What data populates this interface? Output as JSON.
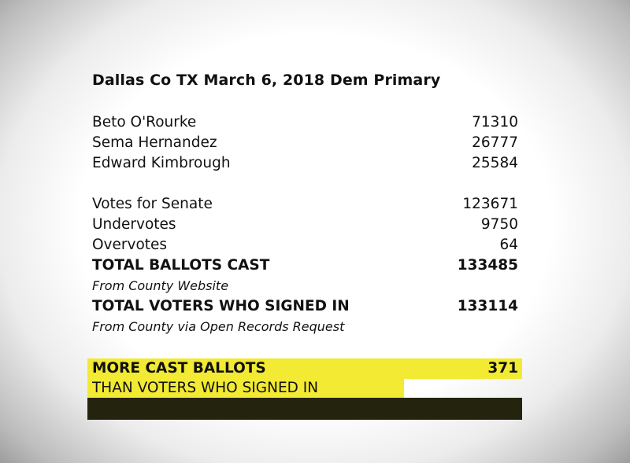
{
  "title": "Dallas Co TX March 6, 2018 Dem Primary",
  "candidates": [
    {
      "name": "Beto O'Rourke",
      "votes": "71310"
    },
    {
      "name": "Sema Hernandez",
      "votes": "26777"
    },
    {
      "name": "Edward Kimbrough",
      "votes": "25584"
    }
  ],
  "totals": [
    {
      "label": "Votes for Senate",
      "value": "123671"
    },
    {
      "label": "Undervotes",
      "value": "9750"
    },
    {
      "label": "Overvotes",
      "value": "64"
    }
  ],
  "ballots_cast": {
    "label": "TOTAL BALLOTS CAST",
    "value": "133485",
    "source": "From County Website"
  },
  "voters_signed_in": {
    "label": "TOTAL VOTERS WHO SIGNED IN",
    "value": "133114",
    "source": "From County via Open Records Request"
  },
  "highlight": {
    "line1": "MORE CAST BALLOTS",
    "difference": "371",
    "line2": "THAN VOTERS WHO SIGNED IN"
  },
  "colors": {
    "highlight": "#f2ea33",
    "dark_bar": "#24230d"
  }
}
